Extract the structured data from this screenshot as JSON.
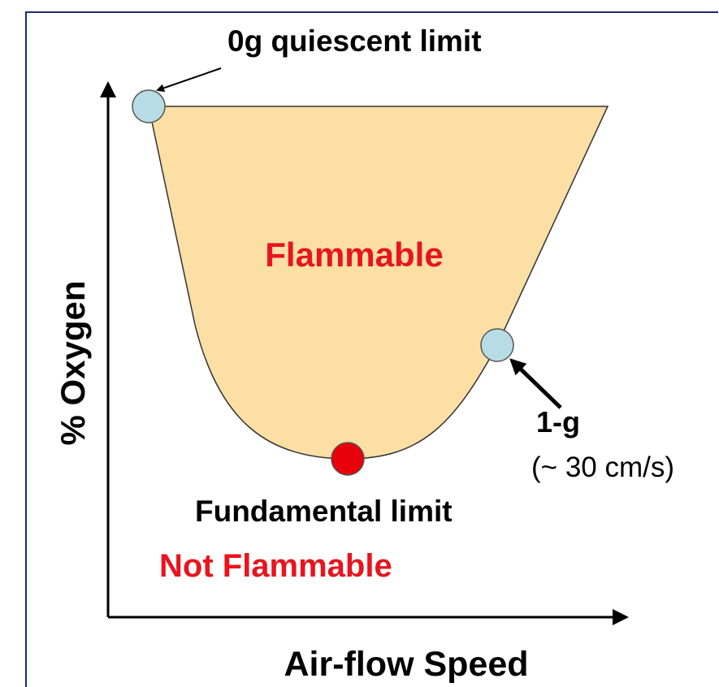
{
  "labels": {
    "quiescent": "0g quiescent limit",
    "flammable": "Flammable",
    "one_g": "1-g",
    "one_g_speed": "(~ 30 cm/s)",
    "fundamental": "Fundamental limit",
    "not_flammable": "Not Flammable"
  },
  "axes": {
    "x_label": "Air-flow Speed",
    "y_label": "% Oxygen"
  }
}
